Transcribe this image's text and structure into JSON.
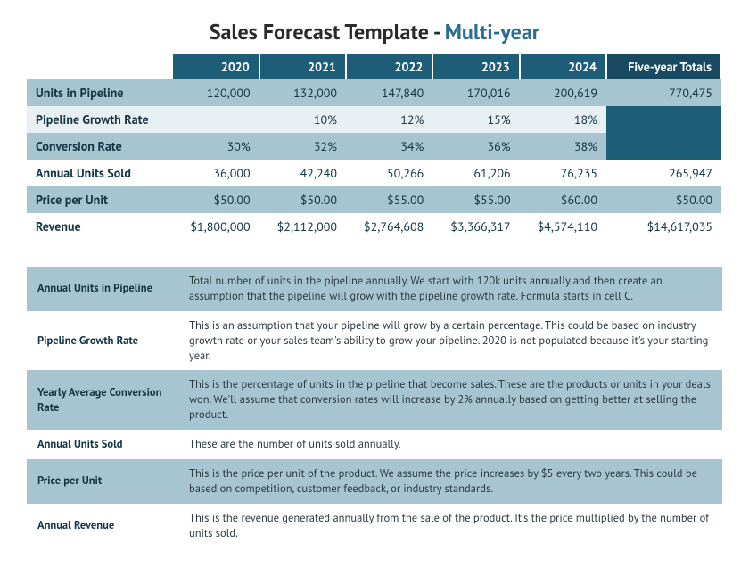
{
  "title_prefix": "Sales Forecast Template - ",
  "title_accent": "Multi-year",
  "columns": [
    "2020",
    "2021",
    "2022",
    "2023",
    "2024",
    "Five-year Totals"
  ],
  "rows": [
    {
      "label": "Units in Pipeline",
      "cells": [
        "120,000",
        "132,000",
        "147,840",
        "170,016",
        "200,619",
        "770,475"
      ],
      "shade": "shade"
    },
    {
      "label": "Pipeline Growth Rate",
      "cells": [
        "",
        "10%",
        "12%",
        "15%",
        "18%",
        "__DARK__"
      ],
      "shade": "light"
    },
    {
      "label": "Conversion Rate",
      "cells": [
        "30%",
        "32%",
        "34%",
        "36%",
        "38%",
        "__DARK__"
      ],
      "shade": "shade"
    },
    {
      "label": "Annual Units Sold",
      "cells": [
        "36,000",
        "42,240",
        "50,266",
        "61,206",
        "76,235",
        "265,947"
      ],
      "shade": "plain"
    },
    {
      "label": "Price per Unit",
      "cells": [
        "$50.00",
        "$50.00",
        "$55.00",
        "$55.00",
        "$60.00",
        "$50.00"
      ],
      "shade": "shade"
    },
    {
      "label": "Revenue",
      "cells": [
        "$1,800,000",
        "$2,112,000",
        "$2,764,608",
        "$3,366,317",
        "$4,574,110",
        "$14,617,035"
      ],
      "shade": "plain"
    }
  ],
  "definitions": [
    {
      "term": "Annual Units in Pipeline",
      "desc": "Total number of units in the pipeline annually. We start with 120k units annually and then create an assumption that the pipeline will grow with the pipeline growth rate. Formula starts in cell C.",
      "shade": "shade"
    },
    {
      "term": "Pipeline Growth Rate",
      "desc": "This is an assumption that your pipeline will grow by a certain percentage. This could be based on industry growth rate or your sales team's ability to grow your pipeline. 2020 is not populated because it's your starting year.",
      "shade": "plain"
    },
    {
      "term": "Yearly Average Conversion Rate",
      "desc": "This is the percentage of units in the pipeline that become sales. These are the products or units in your deals won. We'll assume that conversion rates will increase by 2% annually based on getting better at selling the product.",
      "shade": "shade"
    },
    {
      "term": "Annual Units Sold",
      "desc": "These are the number of units sold annually.",
      "shade": "plain"
    },
    {
      "term": "Price per Unit",
      "desc": "This is the price per unit of the product. We assume the price increases by $5 every two years. This could be based on competition, customer feedback, or industry standards.",
      "shade": "shade"
    },
    {
      "term": "Annual Revenue",
      "desc": "This is the revenue generated annually from the sale of the product. It's the price multiplied by the number of units sold.",
      "shade": "plain"
    }
  ],
  "styling": {
    "header_bg": "#1e5d78",
    "header_totals_bg": "#174a60",
    "shade_bg": "#a7c5d1",
    "light_bg": "#e9f0f3",
    "accent_color": "#2b6f8f"
  }
}
